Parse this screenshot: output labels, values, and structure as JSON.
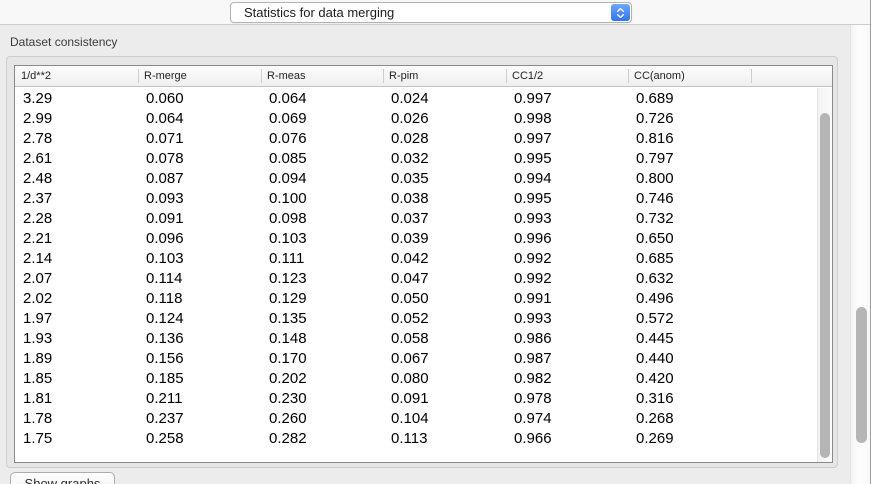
{
  "topbar": {
    "dropdown": {
      "value": "Statistics for data merging"
    }
  },
  "section": {
    "title": "Dataset consistency"
  },
  "table": {
    "columns": [
      "1/d**2",
      "R-merge",
      "R-meas",
      "R-pim",
      "CC1/2",
      "CC(anom)"
    ],
    "rows": [
      [
        "3.29",
        "0.060",
        "0.064",
        "0.024",
        "0.997",
        "0.689"
      ],
      [
        "2.99",
        "0.064",
        "0.069",
        "0.026",
        "0.998",
        "0.726"
      ],
      [
        "2.78",
        "0.071",
        "0.076",
        "0.028",
        "0.997",
        "0.816"
      ],
      [
        "2.61",
        "0.078",
        "0.085",
        "0.032",
        "0.995",
        "0.797"
      ],
      [
        "2.48",
        "0.087",
        "0.094",
        "0.035",
        "0.994",
        "0.800"
      ],
      [
        "2.37",
        "0.093",
        "0.100",
        "0.038",
        "0.995",
        "0.746"
      ],
      [
        "2.28",
        "0.091",
        "0.098",
        "0.037",
        "0.993",
        "0.732"
      ],
      [
        "2.21",
        "0.096",
        "0.103",
        "0.039",
        "0.996",
        "0.650"
      ],
      [
        "2.14",
        "0.103",
        "0.111",
        "0.042",
        "0.992",
        "0.685"
      ],
      [
        "2.07",
        "0.114",
        "0.123",
        "0.047",
        "0.992",
        "0.632"
      ],
      [
        "2.02",
        "0.118",
        "0.129",
        "0.050",
        "0.991",
        "0.496"
      ],
      [
        "1.97",
        "0.124",
        "0.135",
        "0.052",
        "0.993",
        "0.572"
      ],
      [
        "1.93",
        "0.136",
        "0.148",
        "0.058",
        "0.986",
        "0.445"
      ],
      [
        "1.89",
        "0.156",
        "0.170",
        "0.067",
        "0.987",
        "0.440"
      ],
      [
        "1.85",
        "0.185",
        "0.202",
        "0.080",
        "0.982",
        "0.420"
      ],
      [
        "1.81",
        "0.211",
        "0.230",
        "0.091",
        "0.978",
        "0.316"
      ],
      [
        "1.78",
        "0.237",
        "0.260",
        "0.104",
        "0.974",
        "0.268"
      ],
      [
        "1.75",
        "0.258",
        "0.282",
        "0.113",
        "0.966",
        "0.269"
      ]
    ]
  },
  "footer": {
    "show_graphs_label": "Show graphs"
  },
  "colors": {
    "accent_blue": "#3b7ef2",
    "main_background": "#ececec",
    "table_border": "#8a8a8a",
    "scroll_thumb": "#b5b5b5"
  }
}
